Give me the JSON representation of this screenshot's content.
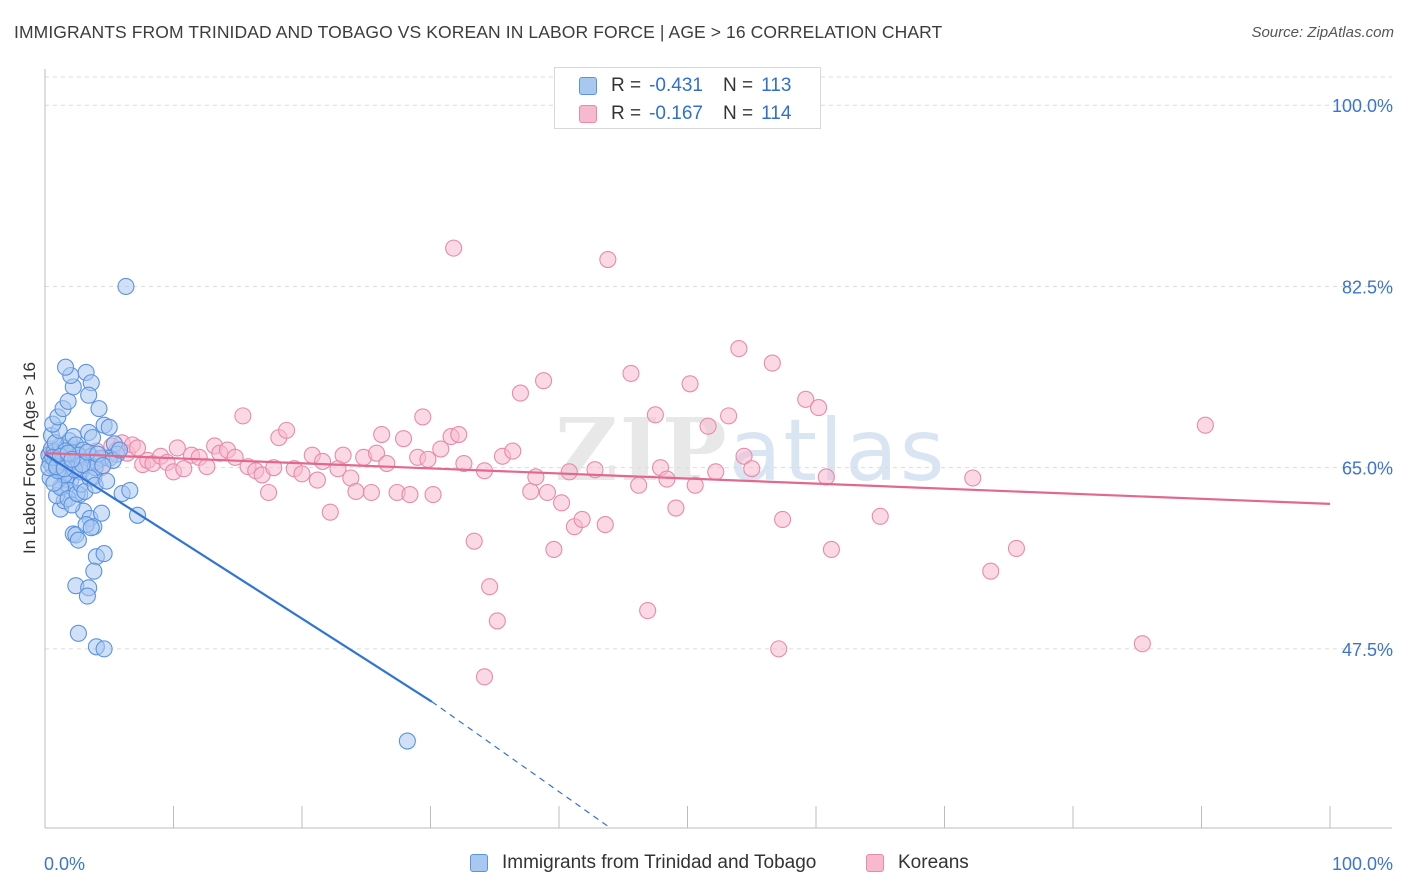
{
  "header": {
    "title": "IMMIGRANTS FROM TRINIDAD AND TOBAGO VS KOREAN IN LABOR FORCE | AGE > 16 CORRELATION CHART",
    "source": "Source: ZipAtlas.com"
  },
  "watermark": {
    "zip": "ZIP",
    "atlas": "atlas"
  },
  "legend": {
    "rows": [
      {
        "r_label": "R = ",
        "r_value": "-0.431",
        "n_label": "N = ",
        "n_value": "113"
      },
      {
        "r_label": "R = ",
        "r_value": "-0.167",
        "n_label": "N = ",
        "n_value": "114"
      }
    ]
  },
  "colors": {
    "blue_fill": "#a9c8f0",
    "blue_stroke": "#5b93e0",
    "blue_line": "#2f74d8",
    "pink_fill": "#f6b9cd",
    "pink_stroke": "#e98aab",
    "pink_line": "#e2688f",
    "grid": "#dcdcdc",
    "tick_label": "#3b74d1"
  },
  "chart_data": {
    "type": "scatter",
    "title": "IMMIGRANTS FROM TRINIDAD AND TOBAGO VS KOREAN IN LABOR FORCE | AGE > 16 CORRELATION CHART",
    "xlabel": "",
    "ylabel": "In Labor Force | Age > 16",
    "xlim": [
      0,
      100
    ],
    "ylim": [
      30.2,
      103.5
    ],
    "x_tick_labels": [
      "0.0%",
      "100.0%"
    ],
    "y_ticks": [
      47.5,
      65.0,
      82.5,
      100.0
    ],
    "y_tick_labels": [
      "47.5%",
      "65.0%",
      "82.5%",
      "100.0%"
    ],
    "grid": true,
    "legend_position": "top-center",
    "series": [
      {
        "name": "Immigrants from Trinidad and Tobago",
        "R": -0.431,
        "N": 113,
        "points": [
          [
            0.3,
            66.2
          ],
          [
            0.4,
            65.5
          ],
          [
            0.5,
            66.8
          ],
          [
            0.6,
            65.1
          ],
          [
            0.7,
            66.5
          ],
          [
            0.8,
            65.8
          ],
          [
            0.9,
            64.9
          ],
          [
            1.0,
            66.3
          ],
          [
            1.1,
            65.4
          ],
          [
            1.2,
            67.1
          ],
          [
            1.3,
            64.5
          ],
          [
            1.4,
            66.0
          ],
          [
            1.5,
            65.7
          ],
          [
            1.6,
            66.9
          ],
          [
            1.7,
            64.2
          ],
          [
            1.8,
            65.3
          ],
          [
            1.9,
            67.6
          ],
          [
            2.0,
            63.8
          ],
          [
            2.1,
            66.4
          ],
          [
            2.2,
            65.0
          ],
          [
            0.5,
            68.1
          ],
          [
            0.8,
            67.4
          ],
          [
            1.1,
            68.6
          ],
          [
            1.3,
            63.2
          ],
          [
            1.6,
            63.9
          ],
          [
            1.9,
            62.8
          ],
          [
            2.2,
            68.0
          ],
          [
            2.4,
            67.2
          ],
          [
            2.6,
            65.9
          ],
          [
            2.8,
            64.6
          ],
          [
            3.0,
            66.7
          ],
          [
            3.2,
            65.2
          ],
          [
            3.4,
            68.4
          ],
          [
            3.6,
            66.1
          ],
          [
            3.8,
            64.1
          ],
          [
            4.0,
            65.6
          ],
          [
            0.6,
            69.2
          ],
          [
            1.0,
            69.9
          ],
          [
            1.4,
            70.7
          ],
          [
            1.8,
            71.4
          ],
          [
            2.2,
            72.8
          ],
          [
            2.0,
            73.9
          ],
          [
            1.6,
            74.7
          ],
          [
            3.2,
            74.2
          ],
          [
            3.6,
            73.2
          ],
          [
            3.4,
            72.0
          ],
          [
            4.2,
            70.7
          ],
          [
            4.6,
            69.1
          ],
          [
            5.0,
            68.9
          ],
          [
            5.4,
            67.3
          ],
          [
            5.6,
            66.3
          ],
          [
            5.0,
            65.9
          ],
          [
            4.4,
            65.9
          ],
          [
            3.9,
            65.0
          ],
          [
            2.7,
            62.4
          ],
          [
            3.0,
            60.8
          ],
          [
            3.5,
            60.1
          ],
          [
            3.8,
            59.3
          ],
          [
            4.4,
            60.6
          ],
          [
            5.3,
            65.7
          ],
          [
            5.8,
            66.7
          ],
          [
            6.0,
            62.5
          ],
          [
            6.6,
            62.8
          ],
          [
            7.2,
            60.4
          ],
          [
            1.2,
            61.0
          ],
          [
            1.5,
            61.8
          ],
          [
            2.2,
            58.6
          ],
          [
            2.4,
            58.5
          ],
          [
            2.6,
            58.0
          ],
          [
            3.2,
            59.5
          ],
          [
            3.6,
            59.2
          ],
          [
            4.0,
            56.4
          ],
          [
            4.6,
            56.7
          ],
          [
            3.8,
            55.0
          ],
          [
            2.4,
            53.6
          ],
          [
            3.4,
            53.4
          ],
          [
            3.3,
            52.6
          ],
          [
            2.6,
            49.0
          ],
          [
            4.0,
            47.7
          ],
          [
            4.6,
            47.5
          ],
          [
            0.9,
            62.3
          ],
          [
            1.2,
            63.1
          ],
          [
            1.5,
            64.3
          ],
          [
            1.8,
            62.0
          ],
          [
            2.1,
            61.4
          ],
          [
            2.5,
            62.5
          ],
          [
            2.8,
            63.4
          ],
          [
            3.1,
            62.7
          ],
          [
            3.5,
            64.0
          ],
          [
            3.9,
            63.3
          ],
          [
            0.4,
            64.0
          ],
          [
            0.7,
            63.5
          ],
          [
            1.0,
            64.7
          ],
          [
            1.3,
            65.6
          ],
          [
            1.6,
            66.6
          ],
          [
            1.9,
            65.4
          ],
          [
            2.3,
            64.8
          ],
          [
            2.6,
            66.2
          ],
          [
            2.9,
            65.3
          ],
          [
            3.3,
            66.5
          ],
          [
            3.7,
            67.9
          ],
          [
            4.1,
            66.3
          ],
          [
            4.5,
            65.2
          ],
          [
            4.8,
            63.7
          ],
          [
            0.3,
            65.0
          ],
          [
            0.6,
            66.0
          ],
          [
            0.9,
            65.1
          ],
          [
            1.2,
            66.1
          ],
          [
            1.5,
            64.9
          ],
          [
            1.8,
            66.4
          ],
          [
            2.1,
            65.8
          ],
          [
            6.3,
            82.5
          ],
          [
            28.2,
            38.6
          ]
        ],
        "trend": {
          "x0": 0.0,
          "y0": 66.3,
          "x1": 30.1,
          "y1": 42.4,
          "dashed_to_x": 44.0,
          "dashed_to_y": 30.2
        }
      },
      {
        "name": "Koreans",
        "R": -0.167,
        "N": 114,
        "points": [
          [
            0.4,
            66.4
          ],
          [
            0.8,
            65.8
          ],
          [
            1.2,
            65.2
          ],
          [
            1.6,
            66.2
          ],
          [
            2.0,
            65.6
          ],
          [
            2.4,
            66.8
          ],
          [
            2.8,
            64.7
          ],
          [
            3.2,
            66.5
          ],
          [
            3.6,
            65.3
          ],
          [
            4.0,
            66.6
          ],
          [
            4.4,
            65.0
          ],
          [
            4.8,
            66.0
          ],
          [
            5.2,
            67.1
          ],
          [
            5.6,
            66.7
          ],
          [
            6.0,
            67.4
          ],
          [
            6.4,
            66.4
          ],
          [
            6.8,
            67.2
          ],
          [
            7.2,
            66.9
          ],
          [
            7.6,
            65.3
          ],
          [
            8.0,
            65.7
          ],
          [
            8.4,
            65.4
          ],
          [
            9.0,
            66.1
          ],
          [
            9.5,
            65.5
          ],
          [
            10.0,
            64.6
          ],
          [
            10.3,
            66.9
          ],
          [
            10.8,
            64.9
          ],
          [
            11.4,
            66.2
          ],
          [
            12.0,
            66.0
          ],
          [
            12.6,
            65.1
          ],
          [
            13.2,
            67.1
          ],
          [
            13.6,
            66.4
          ],
          [
            14.2,
            66.7
          ],
          [
            14.8,
            66.0
          ],
          [
            15.4,
            70.0
          ],
          [
            15.8,
            65.1
          ],
          [
            16.4,
            64.7
          ],
          [
            16.9,
            64.3
          ],
          [
            17.4,
            62.6
          ],
          [
            17.8,
            65.0
          ],
          [
            18.2,
            67.9
          ],
          [
            18.8,
            68.6
          ],
          [
            19.4,
            64.9
          ],
          [
            20.0,
            64.4
          ],
          [
            20.8,
            66.2
          ],
          [
            21.2,
            63.8
          ],
          [
            21.6,
            65.6
          ],
          [
            22.2,
            60.7
          ],
          [
            22.8,
            64.9
          ],
          [
            23.2,
            66.2
          ],
          [
            23.8,
            64.0
          ],
          [
            24.2,
            62.7
          ],
          [
            24.8,
            66.0
          ],
          [
            25.4,
            62.6
          ],
          [
            25.8,
            66.4
          ],
          [
            26.2,
            68.2
          ],
          [
            26.6,
            65.4
          ],
          [
            27.4,
            62.6
          ],
          [
            27.9,
            67.8
          ],
          [
            28.4,
            62.4
          ],
          [
            29.0,
            66.0
          ],
          [
            29.4,
            69.9
          ],
          [
            29.8,
            65.8
          ],
          [
            30.2,
            62.4
          ],
          [
            30.8,
            66.8
          ],
          [
            31.6,
            68.0
          ],
          [
            31.8,
            86.2
          ],
          [
            32.2,
            68.2
          ],
          [
            32.6,
            65.4
          ],
          [
            33.4,
            57.9
          ],
          [
            34.2,
            64.7
          ],
          [
            34.6,
            53.5
          ],
          [
            35.2,
            50.2
          ],
          [
            35.6,
            66.1
          ],
          [
            36.4,
            66.6
          ],
          [
            37.0,
            72.2
          ],
          [
            37.8,
            62.7
          ],
          [
            38.2,
            64.1
          ],
          [
            38.8,
            73.4
          ],
          [
            39.1,
            62.6
          ],
          [
            39.6,
            57.1
          ],
          [
            40.2,
            61.6
          ],
          [
            40.8,
            64.6
          ],
          [
            41.2,
            59.3
          ],
          [
            41.8,
            60.0
          ],
          [
            42.8,
            64.8
          ],
          [
            43.6,
            59.5
          ],
          [
            34.2,
            44.8
          ],
          [
            43.8,
            85.1
          ],
          [
            45.6,
            74.1
          ],
          [
            46.2,
            63.3
          ],
          [
            46.9,
            51.2
          ],
          [
            47.5,
            70.1
          ],
          [
            47.9,
            65.0
          ],
          [
            48.4,
            63.9
          ],
          [
            49.1,
            61.1
          ],
          [
            50.2,
            73.1
          ],
          [
            50.6,
            63.3
          ],
          [
            51.6,
            69.0
          ],
          [
            52.2,
            64.6
          ],
          [
            53.2,
            70.0
          ],
          [
            54.0,
            76.5
          ],
          [
            54.4,
            66.1
          ],
          [
            55.0,
            64.9
          ],
          [
            56.6,
            75.1
          ],
          [
            57.1,
            47.5
          ],
          [
            57.4,
            60.0
          ],
          [
            59.2,
            71.6
          ],
          [
            60.2,
            70.8
          ],
          [
            60.8,
            64.1
          ],
          [
            61.2,
            57.1
          ],
          [
            65.0,
            60.3
          ],
          [
            72.2,
            64.0
          ],
          [
            73.6,
            55.0
          ],
          [
            75.6,
            57.2
          ],
          [
            85.4,
            48.0
          ],
          [
            90.3,
            69.1
          ]
        ],
        "trend": {
          "x0": 0.0,
          "y0": 66.4,
          "x1": 100.0,
          "y1": 61.5
        }
      }
    ]
  }
}
